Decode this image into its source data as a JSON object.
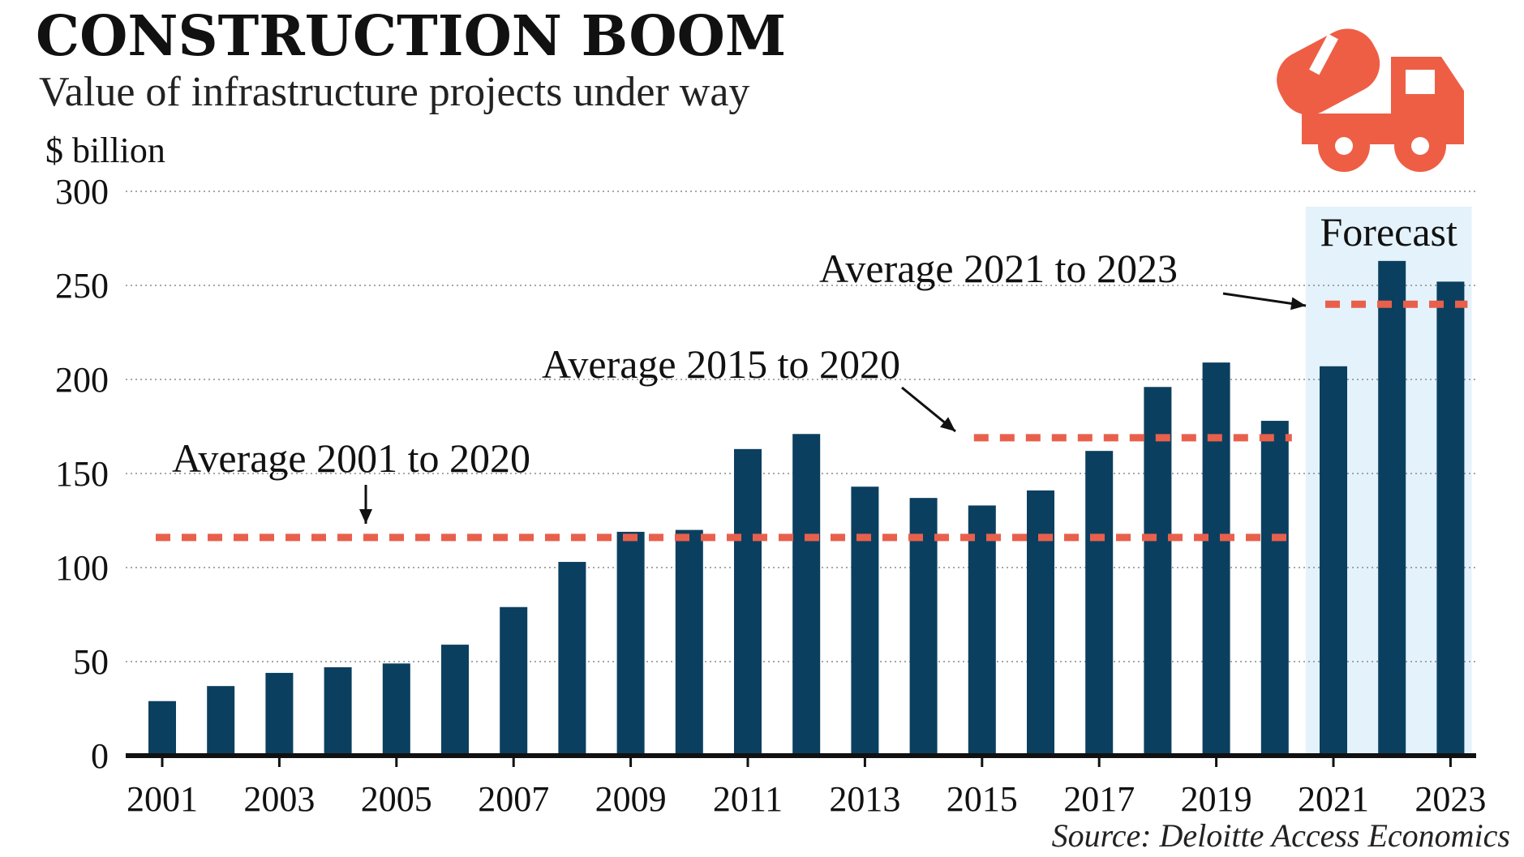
{
  "chart_data": {
    "type": "bar",
    "title": "CONSTRUCTION BOOM",
    "subtitle": "Value of infrastructure projects under way",
    "unit_label": "$ billion",
    "categories": [
      2001,
      2002,
      2003,
      2004,
      2005,
      2006,
      2007,
      2008,
      2009,
      2010,
      2011,
      2012,
      2013,
      2014,
      2015,
      2016,
      2017,
      2018,
      2019,
      2020,
      2021,
      2022,
      2023
    ],
    "values": [
      29,
      37,
      44,
      47,
      49,
      59,
      79,
      103,
      119,
      120,
      163,
      171,
      143,
      137,
      133,
      141,
      162,
      196,
      209,
      178,
      207,
      263,
      252
    ],
    "x_tick_labels": [
      "2001",
      "2003",
      "2005",
      "2007",
      "2009",
      "2011",
      "2013",
      "2015",
      "2017",
      "2019",
      "2021",
      "2023"
    ],
    "y_ticks": [
      0,
      50,
      100,
      150,
      200,
      250,
      300
    ],
    "ylim": [
      0,
      300
    ],
    "grid": true,
    "bar_color": "#0b3f5f",
    "average_color": "#e8604c",
    "forecast_band_color": "#e4f2fb",
    "forecast": {
      "label": "Forecast",
      "from": 2021,
      "to": 2023
    },
    "averages": [
      {
        "label": "Average 2001 to 2020",
        "from": 2001,
        "to": 2020,
        "value": 116
      },
      {
        "label": "Average 2015 to 2020",
        "from": 2015,
        "to": 2020,
        "value": 169
      },
      {
        "label": "Average 2021 to 2023",
        "from": 2021,
        "to": 2023,
        "value": 240
      }
    ],
    "source": "Source: Deloitte Access Economics",
    "icon": "cement-truck-icon"
  }
}
